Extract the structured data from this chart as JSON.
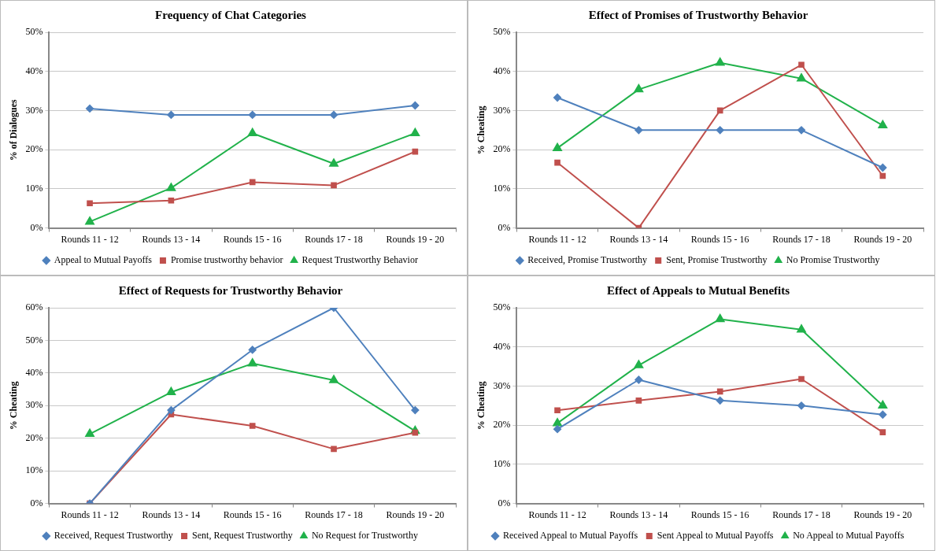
{
  "chart_data": [
    {
      "type": "line",
      "title": "Frequency of Chat Categories",
      "ylabel": "% of Dialogues",
      "categories": [
        "Rounds 11 - 12",
        "Rounds 13 - 14",
        "Rounds 15 - 16",
        "Rounds 17 - 18",
        "Rounds 19 - 20"
      ],
      "ylim": [
        0,
        50
      ],
      "yticks": [
        {
          "value": 0,
          "label": "0%"
        },
        {
          "value": 10,
          "label": "10%"
        },
        {
          "value": 20,
          "label": "20%"
        },
        {
          "value": 30,
          "label": "30%"
        },
        {
          "value": 40,
          "label": "40%"
        },
        {
          "value": 50,
          "label": "50%"
        }
      ],
      "grid": "y",
      "legend": "bottom",
      "series": [
        {
          "name": "Appeal to Mutual Payoffs",
          "color": "#4f81bd",
          "marker": "diamond",
          "values": [
            30.5,
            28.9,
            28.9,
            28.9,
            31.3
          ]
        },
        {
          "name": "Promise trustworthy behavior",
          "color": "#c0504d",
          "marker": "square",
          "values": [
            6.3,
            7.0,
            11.7,
            10.9,
            19.5
          ]
        },
        {
          "name": "Request Trustworthy Behavior",
          "color": "#21b24b",
          "marker": "triangle",
          "values": [
            1.6,
            10.2,
            24.2,
            16.4,
            24.2
          ]
        }
      ]
    },
    {
      "type": "line",
      "title": "Effect of Promises of Trustworthy Behavior",
      "ylabel": "% Cheating",
      "categories": [
        "Rounds 11 - 12",
        "Rounds 13 - 14",
        "Rounds 15 - 16",
        "Rounds 17 - 18",
        "Rounds 19 - 20"
      ],
      "ylim": [
        0,
        50
      ],
      "yticks": [
        {
          "value": 0,
          "label": "0%"
        },
        {
          "value": 10,
          "label": "10%"
        },
        {
          "value": 20,
          "label": "20%"
        },
        {
          "value": 30,
          "label": "30%"
        },
        {
          "value": 40,
          "label": "40%"
        },
        {
          "value": 50,
          "label": "50%"
        }
      ],
      "grid": "y",
      "legend": "bottom",
      "series": [
        {
          "name": "Received, Promise Trustworthy",
          "color": "#4f81bd",
          "marker": "diamond",
          "values": [
            33.3,
            25,
            25,
            25,
            15.4
          ]
        },
        {
          "name": "Sent, Promise Trustworthy",
          "color": "#c0504d",
          "marker": "square",
          "values": [
            16.7,
            0,
            30,
            41.7,
            13.3
          ]
        },
        {
          "name": "No Promise Trustworthy",
          "color": "#21b24b",
          "marker": "triangle",
          "values": [
            20.4,
            35.4,
            42.2,
            38.2,
            26.2
          ]
        }
      ]
    },
    {
      "type": "line",
      "title": "Effect of Requests for Trustworthy Behavior",
      "ylabel": "% Cheating",
      "categories": [
        "Rounds 11 - 12",
        "Rounds 13 - 14",
        "Rounds 15 - 16",
        "Rounds 17 - 18",
        "Rounds 19 - 20"
      ],
      "ylim": [
        0,
        60
      ],
      "yticks": [
        {
          "value": 0,
          "label": "0%"
        },
        {
          "value": 10,
          "label": "10%"
        },
        {
          "value": 20,
          "label": "20%"
        },
        {
          "value": 30,
          "label": "30%"
        },
        {
          "value": 40,
          "label": "40%"
        },
        {
          "value": 50,
          "label": "50%"
        },
        {
          "value": 60,
          "label": "60%"
        }
      ],
      "grid": "y",
      "legend": "bottom",
      "series": [
        {
          "name": "Received, Request Trustworthy",
          "color": "#4f81bd",
          "marker": "diamond",
          "values": [
            0,
            28.6,
            47.1,
            60,
            28.6
          ]
        },
        {
          "name": "Sent, Request Trustworthy",
          "color": "#c0504d",
          "marker": "square",
          "values": [
            0,
            27.3,
            23.8,
            16.7,
            21.7
          ]
        },
        {
          "name": "No Request for Trustworthy",
          "color": "#21b24b",
          "marker": "triangle",
          "values": [
            21.3,
            34.1,
            42.9,
            37.8,
            22.2
          ]
        }
      ]
    },
    {
      "type": "line",
      "title": "Effect of Appeals to Mutual Benefits",
      "ylabel": "% Cheating",
      "categories": [
        "Rounds 11 - 12",
        "Rounds 13 - 14",
        "Rounds 15 - 16",
        "Rounds 17 - 18",
        "Rounds 19 - 20"
      ],
      "ylim": [
        0,
        50
      ],
      "yticks": [
        {
          "value": 0,
          "label": "0%"
        },
        {
          "value": 10,
          "label": "10%"
        },
        {
          "value": 20,
          "label": "20%"
        },
        {
          "value": 30,
          "label": "30%"
        },
        {
          "value": 40,
          "label": "40%"
        },
        {
          "value": 50,
          "label": "50%"
        }
      ],
      "grid": "y",
      "legend": "bottom",
      "series": [
        {
          "name": "Received Appeal to Mutual Payoffs",
          "color": "#4f81bd",
          "marker": "diamond",
          "values": [
            19.0,
            31.6,
            26.3,
            25.0,
            22.7
          ]
        },
        {
          "name": "Sent Appeal to Mutual Payoffs",
          "color": "#c0504d",
          "marker": "square",
          "values": [
            23.8,
            26.3,
            28.6,
            31.8,
            18.2
          ]
        },
        {
          "name": "No Appeal to Mutual Payoffs",
          "color": "#21b24b",
          "marker": "triangle",
          "values": [
            20.5,
            35.3,
            47.1,
            44.4,
            25.0
          ]
        }
      ]
    }
  ]
}
